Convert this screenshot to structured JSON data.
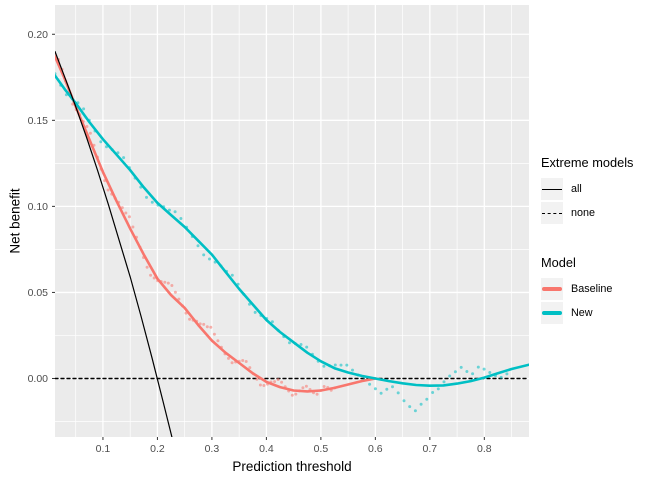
{
  "chart_data": {
    "type": "line",
    "title": "",
    "xlabel": "Prediction threshold",
    "ylabel": "Net benefit",
    "xlim": [
      0.012,
      0.882
    ],
    "ylim": [
      -0.034,
      0.217
    ],
    "x_ticks": [
      0.1,
      0.2,
      0.3,
      0.4,
      0.5,
      0.6,
      0.7,
      0.8
    ],
    "x_tick_labels": [
      "0.1",
      "0.2",
      "0.3",
      "0.4",
      "0.5",
      "0.6",
      "0.7",
      "0.8"
    ],
    "y_ticks": [
      0.0,
      0.05,
      0.1,
      0.15,
      0.2
    ],
    "y_tick_labels": [
      "0.00",
      "0.05",
      "0.10",
      "0.15",
      "0.20"
    ],
    "x_minor": [
      0.05,
      0.15,
      0.25,
      0.35,
      0.45,
      0.55,
      0.65,
      0.75,
      0.85
    ],
    "y_minor": [
      -0.025,
      0.025,
      0.075,
      0.125,
      0.175
    ],
    "grid": true,
    "legend_position": "right",
    "colors": {
      "panel_bg": "#EBEBEB",
      "grid": "#FFFFFF",
      "tick_label": "#4D4D4D",
      "tick_mark": "#333333",
      "baseline": "#F8766D",
      "new": "#00BFC4",
      "extreme": "#000000",
      "legend_key_bg": "#F2F2F2"
    },
    "legends": [
      {
        "title": "Extreme models",
        "items": [
          {
            "label": "all",
            "line": "solid",
            "color": "#000000"
          },
          {
            "label": "none",
            "line": "dashed",
            "color": "#000000"
          }
        ]
      },
      {
        "title": "Model",
        "items": [
          {
            "label": "Baseline",
            "color": "#F8766D"
          },
          {
            "label": "New",
            "color": "#00BFC4"
          }
        ]
      }
    ],
    "series": [
      {
        "name": "none",
        "color": "#000000",
        "width": 1.4,
        "dash": "3,3",
        "points": [
          [
            0.012,
            0.0
          ],
          [
            0.882,
            0.0
          ]
        ]
      },
      {
        "name": "Baseline",
        "color": "#F8766D",
        "width": 2.6,
        "dash": null,
        "points": [
          [
            0.012,
            0.187
          ],
          [
            0.03,
            0.174
          ],
          [
            0.05,
            0.158
          ],
          [
            0.075,
            0.139
          ],
          [
            0.1,
            0.12
          ],
          [
            0.125,
            0.103
          ],
          [
            0.15,
            0.087
          ],
          [
            0.175,
            0.072
          ],
          [
            0.2,
            0.058
          ],
          [
            0.225,
            0.0485
          ],
          [
            0.25,
            0.041
          ],
          [
            0.275,
            0.031
          ],
          [
            0.3,
            0.022
          ],
          [
            0.325,
            0.015
          ],
          [
            0.35,
            0.009
          ],
          [
            0.375,
            0.003
          ],
          [
            0.4,
            -0.002
          ],
          [
            0.425,
            -0.005
          ],
          [
            0.45,
            -0.007
          ],
          [
            0.475,
            -0.0075
          ],
          [
            0.5,
            -0.007
          ],
          [
            0.525,
            -0.0055
          ],
          [
            0.55,
            -0.0035
          ],
          [
            0.575,
            -0.0015
          ],
          [
            0.6,
            0.0
          ]
        ]
      },
      {
        "name": "New",
        "color": "#00BFC4",
        "width": 2.6,
        "dash": null,
        "points": [
          [
            0.012,
            0.176
          ],
          [
            0.03,
            0.168
          ],
          [
            0.05,
            0.16
          ],
          [
            0.075,
            0.149
          ],
          [
            0.1,
            0.139
          ],
          [
            0.125,
            0.13
          ],
          [
            0.15,
            0.121
          ],
          [
            0.175,
            0.111
          ],
          [
            0.2,
            0.102
          ],
          [
            0.225,
            0.095
          ],
          [
            0.25,
            0.088
          ],
          [
            0.275,
            0.08
          ],
          [
            0.3,
            0.072
          ],
          [
            0.325,
            0.062
          ],
          [
            0.35,
            0.052
          ],
          [
            0.375,
            0.043
          ],
          [
            0.4,
            0.034
          ],
          [
            0.425,
            0.027
          ],
          [
            0.45,
            0.021
          ],
          [
            0.475,
            0.015
          ],
          [
            0.5,
            0.01
          ],
          [
            0.525,
            0.006
          ],
          [
            0.55,
            0.0035
          ],
          [
            0.575,
            0.0015
          ],
          [
            0.6,
            0.0
          ],
          [
            0.625,
            -0.0015
          ],
          [
            0.65,
            -0.0028
          ],
          [
            0.675,
            -0.0038
          ],
          [
            0.7,
            -0.0042
          ],
          [
            0.725,
            -0.004
          ],
          [
            0.75,
            -0.003
          ],
          [
            0.775,
            -0.0015
          ],
          [
            0.8,
            0.0005
          ],
          [
            0.825,
            0.003
          ],
          [
            0.85,
            0.0055
          ],
          [
            0.882,
            0.008
          ]
        ]
      },
      {
        "name": "all",
        "color": "#000000",
        "width": 1.2,
        "dash": null,
        "points": [
          [
            0.012,
            0.19
          ],
          [
            0.03,
            0.175
          ],
          [
            0.05,
            0.158
          ],
          [
            0.07,
            0.14
          ],
          [
            0.09,
            0.121
          ],
          [
            0.11,
            0.101
          ],
          [
            0.13,
            0.08
          ],
          [
            0.15,
            0.059
          ],
          [
            0.17,
            0.036
          ],
          [
            0.19,
            0.012
          ],
          [
            0.21,
            -0.013
          ],
          [
            0.2265,
            -0.034
          ]
        ]
      }
    ],
    "scatter": [
      {
        "name": "Baseline",
        "base": "Baseline",
        "color": "#F8766D",
        "radius": 1.5,
        "opacity": 0.55,
        "t0": 0.012,
        "dt": 0.0065,
        "offsets": [
          0.001,
          0.003,
          0.002,
          0,
          -0.002,
          -0.003,
          -0.001,
          0.001,
          0.002,
          0.004,
          0.005,
          0.003,
          0.001,
          -0.001,
          -0.003,
          -0.004,
          -0.002,
          0,
          0.002,
          0.003,
          0.004,
          0.006,
          0.004,
          0.002,
          0,
          -0.002,
          -0.004,
          -0.005,
          -0.003,
          -0.001,
          0.001,
          0.003,
          0.005,
          0.006,
          0.004,
          0.002,
          0,
          -0.002,
          -0.003,
          -0.001,
          0.001,
          0.002,
          0.004,
          0.005,
          0.007,
          0.005,
          0.003,
          0.001,
          -0.001,
          -0.002,
          -0.003,
          -0.001,
          0.001,
          0.003,
          0.004,
          0.002,
          0,
          -0.002,
          -0.004,
          -0.003,
          -0.001,
          0.001,
          0.002,
          0.004,
          0.003,
          0.001,
          -0.001,
          -0.003,
          -0.002,
          0,
          0.002,
          0.003,
          0.001,
          -0.001,
          -0.002,
          0,
          0.002,
          0.001,
          -0.001,
          0
        ]
      },
      {
        "name": "New",
        "base": "New",
        "color": "#00BFC4",
        "radius": 1.5,
        "opacity": 0.55,
        "t0": 0.012,
        "dt": 0.0105,
        "offsets": [
          0.001,
          -0.001,
          -0.002,
          0,
          0.002,
          0.003,
          0.001,
          -0.001,
          -0.003,
          -0.002,
          0,
          0.002,
          0.003,
          0.001,
          -0.001,
          -0.002,
          -0.004,
          -0.003,
          -0.001,
          0.001,
          0.002,
          0.004,
          0.003,
          0.001,
          -0.001,
          -0.003,
          -0.005,
          -0.004,
          -0.002,
          0,
          0.001,
          0.003,
          0.002,
          0,
          -0.002,
          -0.003,
          -0.001,
          0.001,
          0.002,
          0,
          -0.001,
          -0.002,
          0,
          0.002,
          0.003,
          0.001,
          -0.001,
          -0.002,
          0,
          0.002,
          0.003,
          0.004,
          0.002,
          0,
          -0.002,
          -0.004,
          -0.006,
          -0.008,
          -0.005,
          -0.003,
          -0.006,
          -0.01,
          -0.013,
          -0.015,
          -0.011,
          -0.008,
          -0.004,
          -0.002,
          0.002,
          0.005,
          0.007,
          0.009,
          0.006,
          0.004,
          0.007,
          0.005,
          0.002,
          -0.001,
          -0.003,
          -0.002
        ]
      }
    ]
  }
}
